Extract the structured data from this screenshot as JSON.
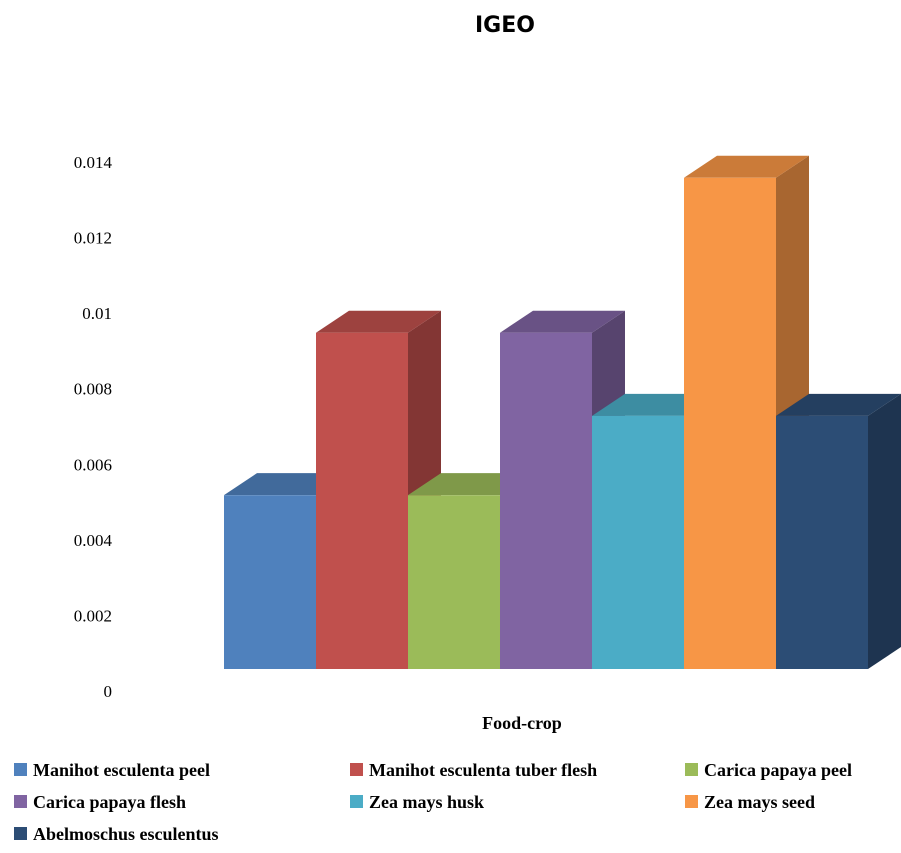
{
  "chart_data": {
    "type": "bar",
    "title": "IGEO",
    "xlabel": "Food-crop",
    "ylabel": "",
    "ylim": [
      0,
      0.014
    ],
    "yticks": [
      "0",
      "0.002",
      "0.004",
      "0.006",
      "0.008",
      "0.01",
      "0.012",
      "0.014"
    ],
    "grid": false,
    "legend_position": "bottom",
    "series": [
      {
        "name": "Manihot esculenta peel",
        "value": 0.0046,
        "color": "#4F81BD"
      },
      {
        "name": "Manihot esculenta tuber flesh",
        "value": 0.0089,
        "color": "#C0504D"
      },
      {
        "name": "Carica papaya peel",
        "value": 0.0046,
        "color": "#9BBB59"
      },
      {
        "name": "Carica papaya flesh",
        "value": 0.0089,
        "color": "#8064A2"
      },
      {
        "name": "Zea mays husk",
        "value": 0.0067,
        "color": "#4BACC6"
      },
      {
        "name": "Zea mays seed",
        "value": 0.013,
        "color": "#F79646"
      },
      {
        "name": "Abelmoschus esculentus",
        "value": 0.0067,
        "color": "#2C4D75"
      }
    ]
  }
}
